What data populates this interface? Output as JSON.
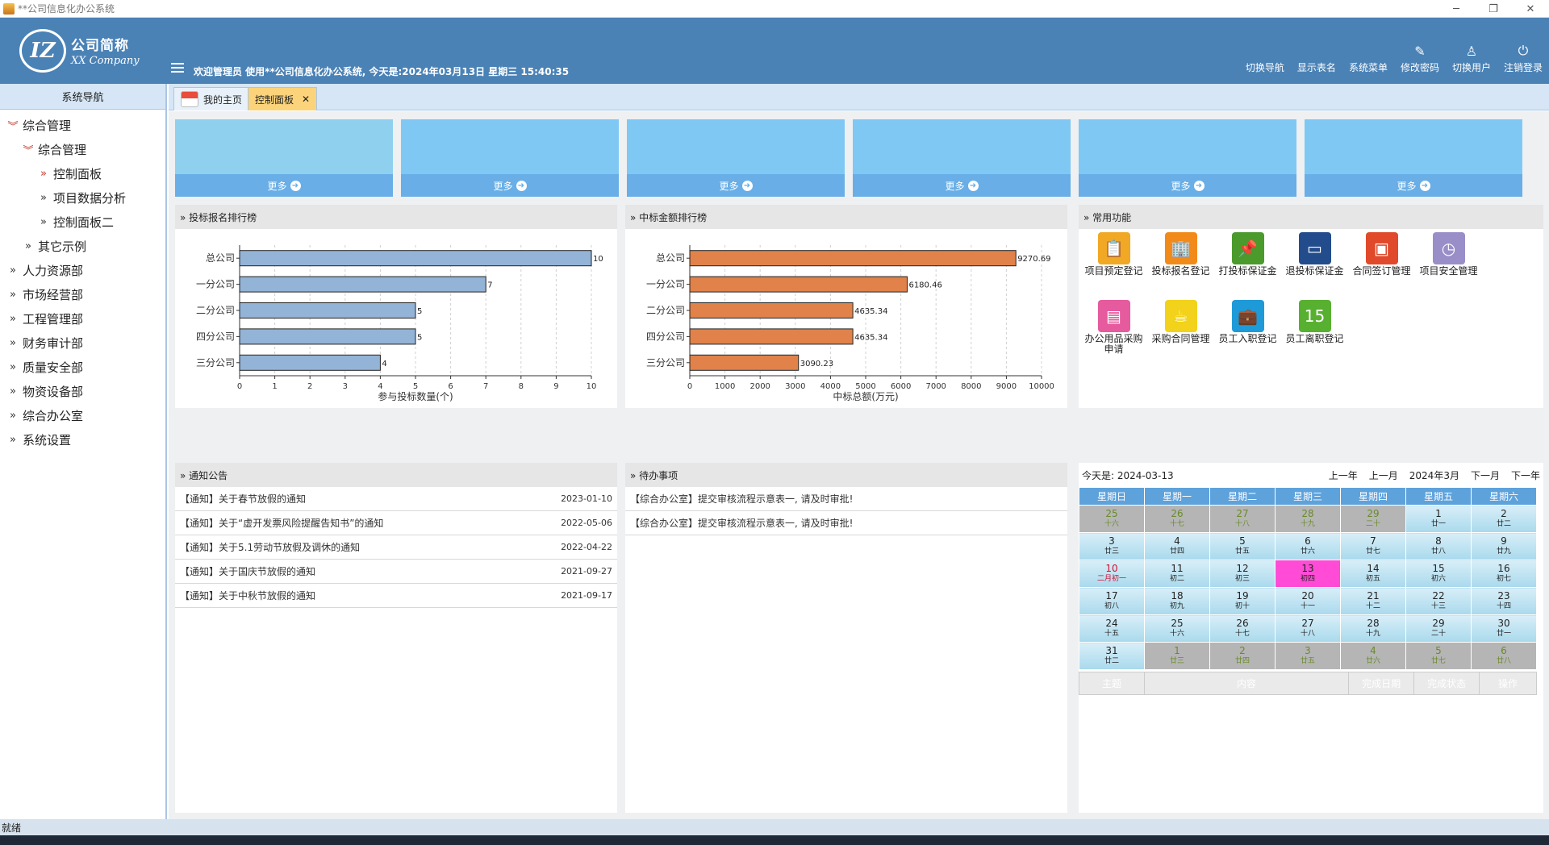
{
  "window": {
    "title": "**公司信息化办公系统",
    "controls": [
      "─",
      "❐",
      "✕"
    ]
  },
  "header": {
    "logo_cn": "公司简称",
    "logo_en": "XX Company",
    "logo_mark": "IZ",
    "welcome": "欢迎管理员 使用**公司信息化办公系统, 今天是:2024年03月13日 星期三 15:40:35",
    "links": [
      {
        "label": "切换导航",
        "icon": ""
      },
      {
        "label": "显示表名",
        "icon": ""
      },
      {
        "label": "系统菜单",
        "icon": ""
      },
      {
        "label": "修改密码",
        "icon": "✎"
      },
      {
        "label": "切换用户",
        "icon": "♙"
      },
      {
        "label": "注销登录",
        "icon": "⏻"
      }
    ]
  },
  "sidebar": {
    "title": "系统导航",
    "items": [
      {
        "label": "综合管理",
        "level": 0,
        "state": "open"
      },
      {
        "label": "综合管理",
        "level": 1,
        "state": "open"
      },
      {
        "label": "控制面板",
        "level": 2,
        "state": "active"
      },
      {
        "label": "项目数据分析",
        "level": 2,
        "state": "closed"
      },
      {
        "label": "控制面板二",
        "level": 2,
        "state": "closed"
      },
      {
        "label": "其它示例",
        "level": 1,
        "state": "closed"
      },
      {
        "label": "人力资源部",
        "level": 0,
        "state": "closed"
      },
      {
        "label": "市场经营部",
        "level": 0,
        "state": "closed"
      },
      {
        "label": "工程管理部",
        "level": 0,
        "state": "closed"
      },
      {
        "label": "财务审计部",
        "level": 0,
        "state": "closed"
      },
      {
        "label": "质量安全部",
        "level": 0,
        "state": "closed"
      },
      {
        "label": "物资设备部",
        "level": 0,
        "state": "closed"
      },
      {
        "label": "综合办公室",
        "level": 0,
        "state": "closed"
      },
      {
        "label": "系统设置",
        "level": 0,
        "state": "closed"
      }
    ]
  },
  "tabs": {
    "home": "我的主页",
    "active": "控制面板",
    "close": "✕"
  },
  "tiles": {
    "more_label": "更多",
    "arrow": "➜",
    "count": 6
  },
  "panels": {
    "bid_rank": "» 投标报名排行榜",
    "win_rank": "» 中标金额排行榜",
    "common": "» 常用功能",
    "notice": "» 通知公告",
    "todo": "» 待办事项"
  },
  "chart_data": [
    {
      "type": "bar",
      "orientation": "horizontal",
      "categories": [
        "总公司",
        "一分公司",
        "二分公司",
        "四分公司",
        "三分公司"
      ],
      "values": [
        10,
        7,
        5,
        5,
        4
      ],
      "value_labels": [
        "10",
        "7",
        "5",
        "5",
        "4"
      ],
      "xlabel": "参与投标数量(个)",
      "xlim": [
        0,
        10
      ],
      "xticks": [
        0,
        1,
        2,
        3,
        4,
        5,
        6,
        7,
        8,
        9,
        10
      ],
      "bar_color": "#93b3d7",
      "grid": true
    },
    {
      "type": "bar",
      "orientation": "horizontal",
      "categories": [
        "总公司",
        "一分公司",
        "二分公司",
        "四分公司",
        "三分公司"
      ],
      "values": [
        9270.69,
        6180.46,
        4635.34,
        4635.34,
        3090.23
      ],
      "value_labels": [
        "9270.69",
        "6180.46",
        "4635.34",
        "4635.34",
        "3090.23"
      ],
      "xlabel": "中标总额(万元)",
      "xlim": [
        0,
        10000
      ],
      "xticks": [
        0,
        1000,
        2000,
        3000,
        4000,
        5000,
        6000,
        7000,
        8000,
        9000,
        10000
      ],
      "bar_color": "#e0824a",
      "grid": true
    }
  ],
  "quick": [
    {
      "label": "项目预定登记",
      "icon": "clipboard-icon",
      "color": "#f0a825",
      "glyph": "📋"
    },
    {
      "label": "投标报名登记",
      "icon": "building-icon",
      "color": "#f28a1a",
      "glyph": "🏢"
    },
    {
      "label": "打投标保证金",
      "icon": "pin-icon",
      "color": "#4a9a2c",
      "glyph": "📌"
    },
    {
      "label": "退投标保证金",
      "icon": "board-icon",
      "color": "#234c8c",
      "glyph": "▭"
    },
    {
      "label": "合同签订管理",
      "icon": "monitor-icon",
      "color": "#e04a2a",
      "glyph": "▣"
    },
    {
      "label": "项目安全管理",
      "icon": "clock-icon",
      "color": "#9a8ec8",
      "glyph": "◷"
    },
    {
      "label": "办公用品采购申请",
      "icon": "notebook-icon",
      "color": "#e65a9e",
      "glyph": "▤"
    },
    {
      "label": "采购合同管理",
      "icon": "cup-icon",
      "color": "#f2d21a",
      "glyph": "☕"
    },
    {
      "label": "员工入职登记",
      "icon": "briefcase-icon",
      "color": "#1e9ad8",
      "glyph": "💼"
    },
    {
      "label": "员工离职登记",
      "icon": "calendar-icon",
      "color": "#58b030",
      "glyph": "15"
    }
  ],
  "notices": [
    {
      "title": "【通知】关于春节放假的通知",
      "date": "2023-01-10"
    },
    {
      "title": "【通知】关于“虚开发票风险提醒告知书”的通知",
      "date": "2022-05-06"
    },
    {
      "title": "【通知】关于5.1劳动节放假及调休的通知",
      "date": "2022-04-22"
    },
    {
      "title": "【通知】关于国庆节放假的通知",
      "date": "2021-09-27"
    },
    {
      "title": "【通知】关于中秋节放假的通知",
      "date": "2021-09-17"
    }
  ],
  "todos": [
    {
      "title": "【综合办公室】提交审核流程示意表一, 请及时审批!"
    },
    {
      "title": "【综合办公室】提交审核流程示意表一, 请及时审批!"
    }
  ],
  "calendar": {
    "today_label": "今天是: 2024-03-13",
    "prev_year": "上一年",
    "prev_month": "上一月",
    "current": "2024年3月",
    "next_month": "下一月",
    "next_year": "下一年",
    "weekdays": [
      "星期日",
      "星期一",
      "星期二",
      "星期三",
      "星期四",
      "星期五",
      "星期六"
    ],
    "weeks": [
      [
        {
          "d": "25",
          "l": "十六",
          "o": 1
        },
        {
          "d": "26",
          "l": "十七",
          "o": 1
        },
        {
          "d": "27",
          "l": "十八",
          "o": 1
        },
        {
          "d": "28",
          "l": "十九",
          "o": 1
        },
        {
          "d": "29",
          "l": "二十",
          "o": 1
        },
        {
          "d": "1",
          "l": "廿一"
        },
        {
          "d": "2",
          "l": "廿二"
        }
      ],
      [
        {
          "d": "3",
          "l": "廿三"
        },
        {
          "d": "4",
          "l": "廿四"
        },
        {
          "d": "5",
          "l": "廿五"
        },
        {
          "d": "6",
          "l": "廿六"
        },
        {
          "d": "7",
          "l": "廿七"
        },
        {
          "d": "8",
          "l": "廿八"
        },
        {
          "d": "9",
          "l": "廿九"
        }
      ],
      [
        {
          "d": "10",
          "l": "二月初一",
          "h": 1
        },
        {
          "d": "11",
          "l": "初二"
        },
        {
          "d": "12",
          "l": "初三"
        },
        {
          "d": "13",
          "l": "初四",
          "t": 1
        },
        {
          "d": "14",
          "l": "初五"
        },
        {
          "d": "15",
          "l": "初六"
        },
        {
          "d": "16",
          "l": "初七"
        }
      ],
      [
        {
          "d": "17",
          "l": "初八"
        },
        {
          "d": "18",
          "l": "初九"
        },
        {
          "d": "19",
          "l": "初十"
        },
        {
          "d": "20",
          "l": "十一"
        },
        {
          "d": "21",
          "l": "十二"
        },
        {
          "d": "22",
          "l": "十三"
        },
        {
          "d": "23",
          "l": "十四"
        }
      ],
      [
        {
          "d": "24",
          "l": "十五"
        },
        {
          "d": "25",
          "l": "十六"
        },
        {
          "d": "26",
          "l": "十七"
        },
        {
          "d": "27",
          "l": "十八"
        },
        {
          "d": "28",
          "l": "十九"
        },
        {
          "d": "29",
          "l": "二十"
        },
        {
          "d": "30",
          "l": "廿一"
        }
      ],
      [
        {
          "d": "31",
          "l": "廿二"
        },
        {
          "d": "1",
          "l": "廿三",
          "o": 1
        },
        {
          "d": "2",
          "l": "廿四",
          "o": 1
        },
        {
          "d": "3",
          "l": "廿五",
          "o": 1
        },
        {
          "d": "4",
          "l": "廿六",
          "o": 1
        },
        {
          "d": "5",
          "l": "廿七",
          "o": 1
        },
        {
          "d": "6",
          "l": "廿八",
          "o": 1
        }
      ]
    ],
    "todo_columns": [
      "主题",
      "内容",
      "完成日期",
      "完成状态",
      "操作"
    ]
  },
  "status": "就绪"
}
